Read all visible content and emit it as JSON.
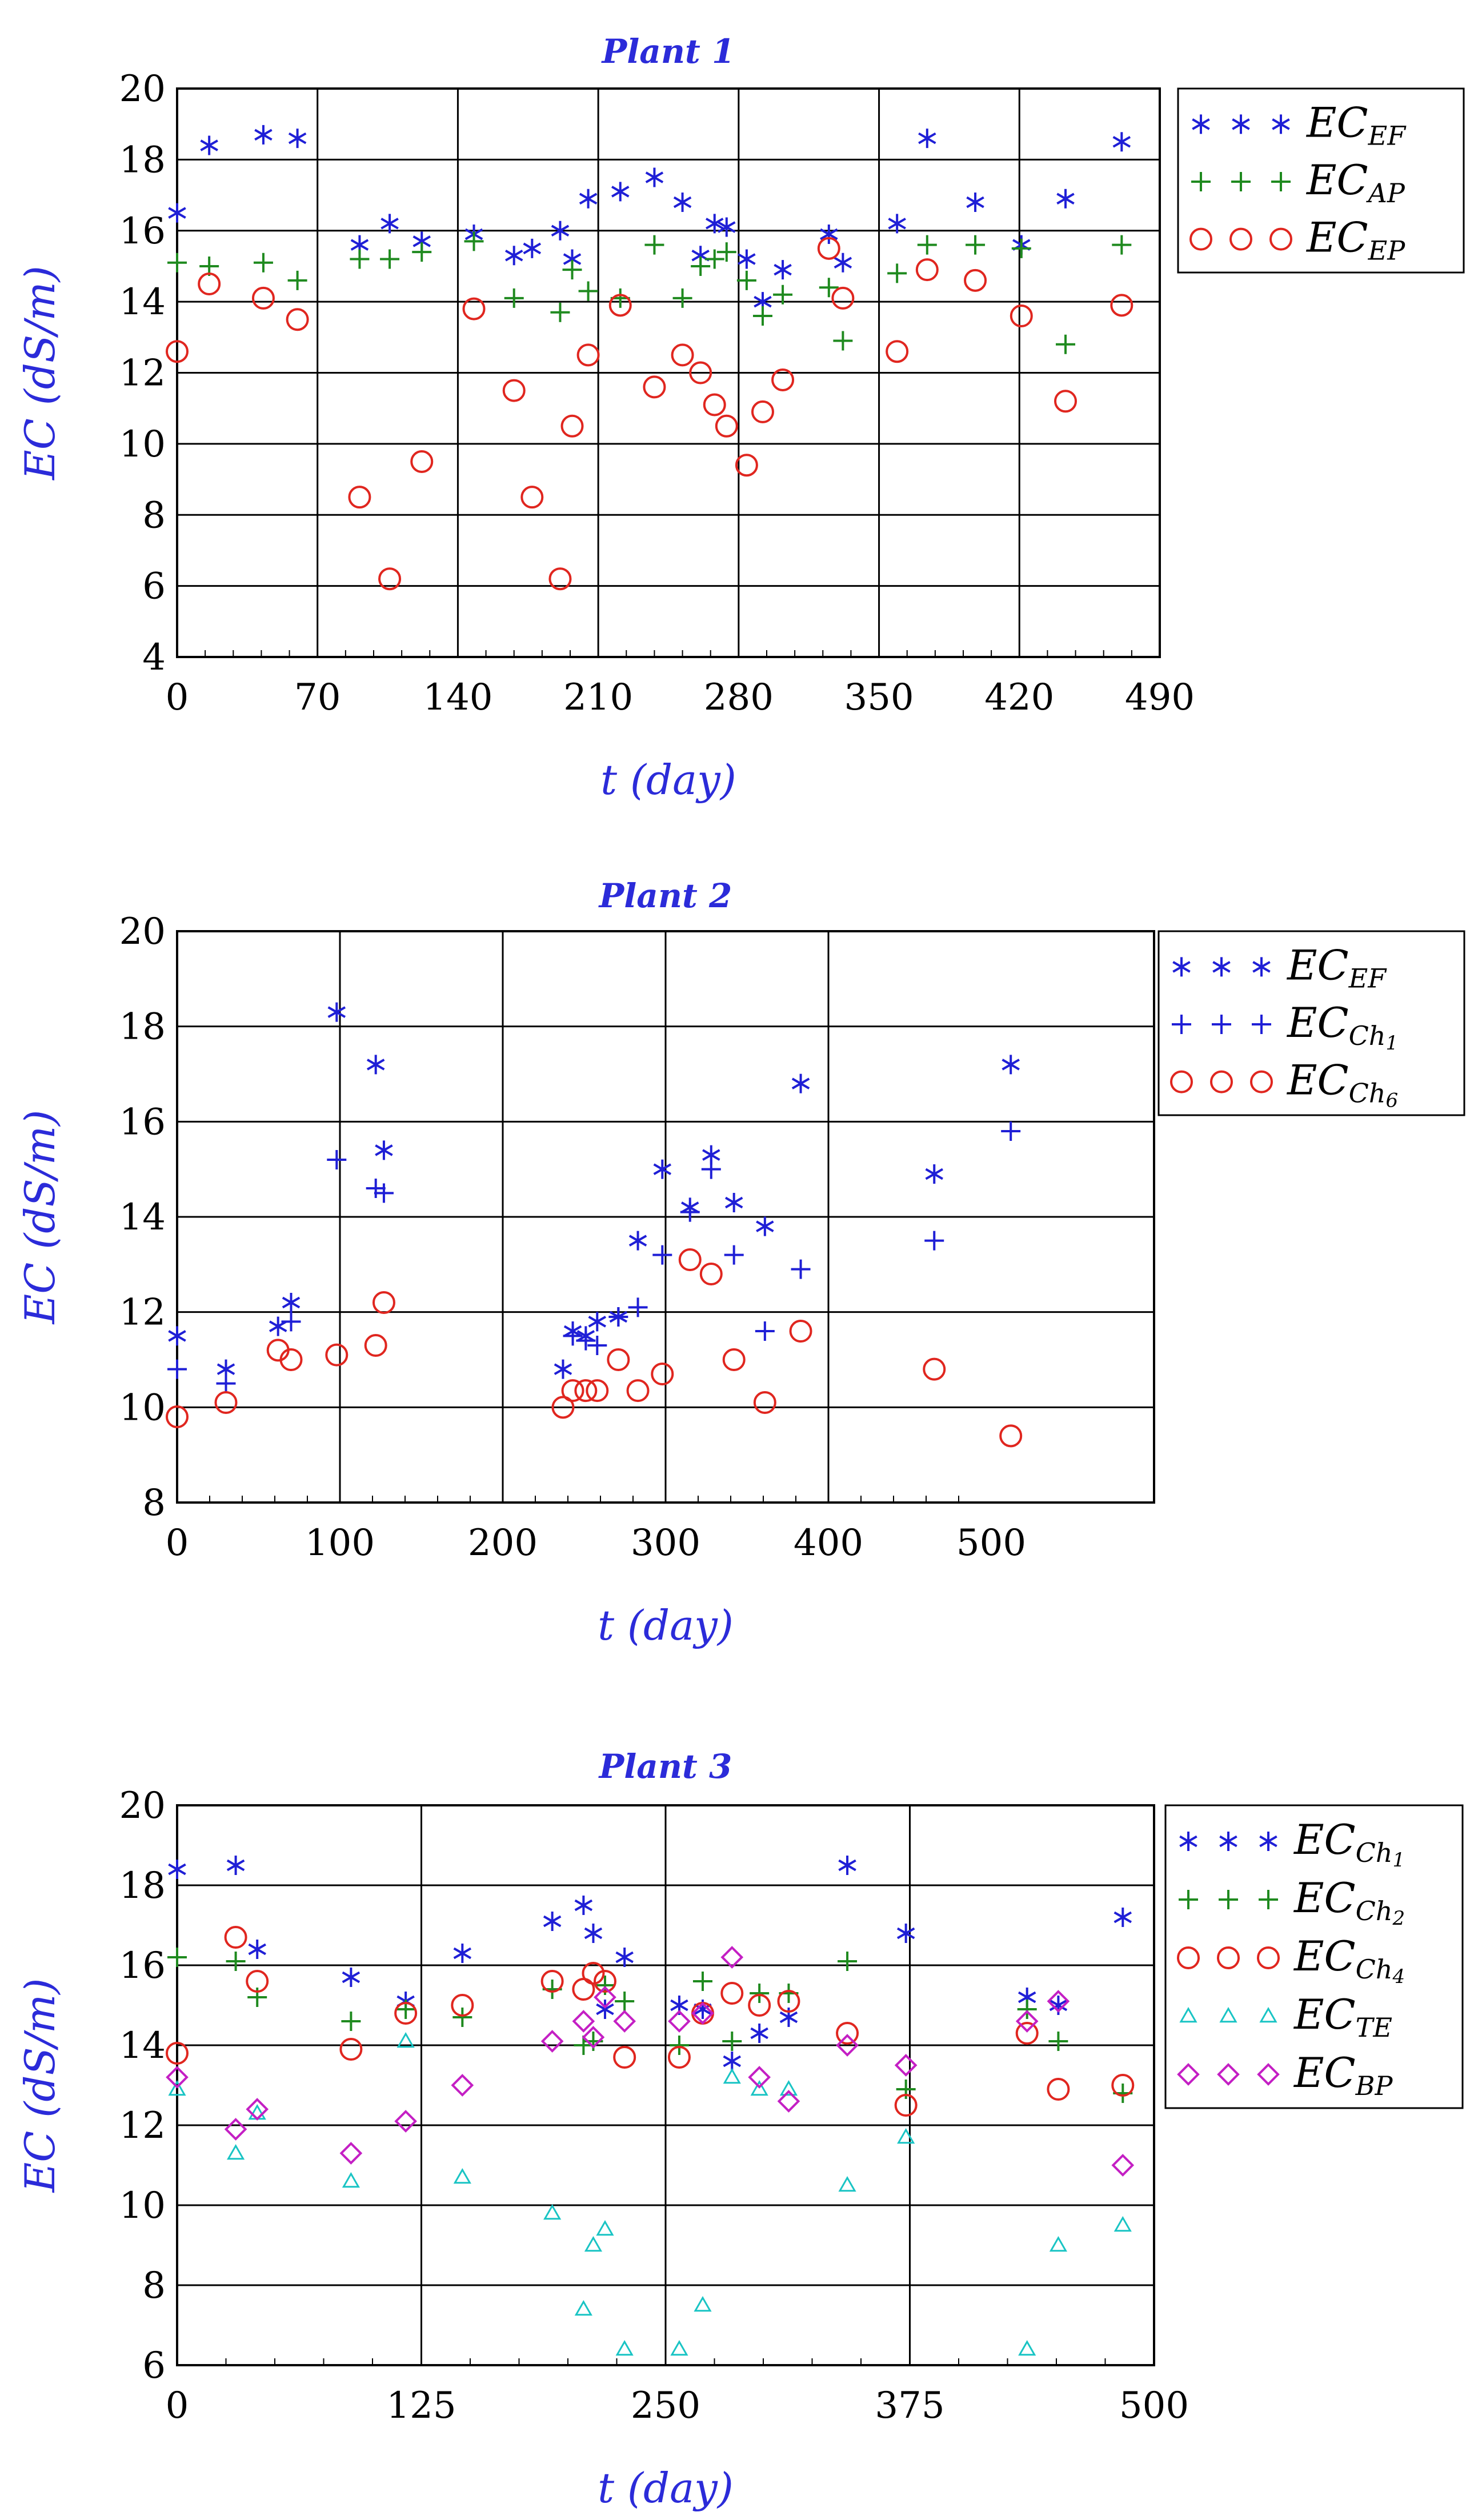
{
  "colors": {
    "EF": "#1f1fd6",
    "AP": "#1f8a1f",
    "EP": "#e0261f",
    "Ch1": "#1f1fd6",
    "Ch6": "#e0261f",
    "Ch2": "#1f8a1f",
    "Ch4": "#e0261f",
    "TE": "#19c4c4",
    "BP": "#c41fc4",
    "label": "#2b2bd9"
  },
  "chart_data": [
    {
      "type": "scatter",
      "title": "Plant 1",
      "xlabel": "t (day)",
      "ylabel": "EC (dS/m)",
      "xlim": [
        0,
        490
      ],
      "ylim": [
        4,
        20
      ],
      "xticks": [
        0,
        70,
        140,
        210,
        280,
        350,
        420,
        490
      ],
      "yticks": [
        4,
        6,
        8,
        10,
        12,
        14,
        16,
        18,
        20
      ],
      "grid": true,
      "legend_position": "top-right outside",
      "series": [
        {
          "name": "EC_EF",
          "base": "EC",
          "sub": "EF",
          "marker": "asterisk",
          "color": "EF",
          "x": [
            0,
            16,
            43,
            60,
            91,
            106,
            122,
            148,
            168,
            177,
            191,
            197,
            205,
            221,
            238,
            252,
            261,
            268,
            274,
            284,
            292,
            302,
            325,
            332,
            359,
            374,
            398,
            421,
            443,
            471
          ],
          "y": [
            16.5,
            18.4,
            18.7,
            18.6,
            15.6,
            16.2,
            15.7,
            15.9,
            15.3,
            15.5,
            16.0,
            15.2,
            16.9,
            17.1,
            17.5,
            16.8,
            15.3,
            16.2,
            16.1,
            15.2,
            14.0,
            14.9,
            15.9,
            15.1,
            16.2,
            18.6,
            16.8,
            15.6,
            16.9,
            18.5
          ]
        },
        {
          "name": "EC_AP",
          "base": "EC",
          "sub": "AP",
          "marker": "plus",
          "color": "AP",
          "x": [
            0,
            16,
            43,
            60,
            91,
            106,
            122,
            148,
            168,
            191,
            197,
            205,
            221,
            238,
            252,
            261,
            268,
            274,
            284,
            292,
            302,
            325,
            332,
            359,
            374,
            398,
            421,
            443,
            471
          ],
          "y": [
            15.1,
            15.0,
            15.1,
            14.6,
            15.2,
            15.2,
            15.4,
            15.7,
            14.1,
            13.7,
            14.9,
            14.3,
            14.1,
            15.6,
            14.1,
            15.0,
            15.2,
            15.4,
            14.6,
            13.6,
            14.2,
            14.4,
            12.9,
            14.8,
            15.6,
            15.6,
            15.5,
            12.8,
            15.6
          ]
        },
        {
          "name": "EC_EP",
          "base": "EC",
          "sub": "EP",
          "marker": "circle",
          "color": "EP",
          "x": [
            0,
            16,
            43,
            60,
            91,
            106,
            122,
            148,
            168,
            177,
            191,
            197,
            205,
            221,
            238,
            252,
            261,
            268,
            274,
            284,
            292,
            302,
            325,
            332,
            359,
            374,
            398,
            421,
            443,
            471
          ],
          "y": [
            12.6,
            14.5,
            14.1,
            13.5,
            8.5,
            6.2,
            9.5,
            13.8,
            11.5,
            8.5,
            6.2,
            10.5,
            12.5,
            13.9,
            11.6,
            12.5,
            12.0,
            11.1,
            10.5,
            9.4,
            10.9,
            11.8,
            15.5,
            14.1,
            12.6,
            14.9,
            14.6,
            13.6,
            11.2,
            13.9
          ]
        }
      ]
    },
    {
      "type": "scatter",
      "title": "Plant 2",
      "xlabel": "t (day)",
      "ylabel": "EC (dS/m)",
      "xlim": [
        0,
        600
      ],
      "ylim": [
        8,
        20
      ],
      "xticks": [
        0,
        100,
        200,
        300,
        400,
        500
      ],
      "yticks": [
        8,
        10,
        12,
        14,
        16,
        18,
        20
      ],
      "grid": true,
      "legend_position": "top-right outside",
      "series": [
        {
          "name": "EC_EF",
          "base": "EC",
          "sub": "EF",
          "marker": "asterisk",
          "color": "EF",
          "x": [
            0,
            30,
            62,
            70,
            98,
            122,
            127,
            237,
            243,
            251,
            258,
            271,
            283,
            298,
            315,
            328,
            342,
            361,
            383,
            465,
            512
          ],
          "y": [
            11.5,
            10.8,
            11.7,
            12.2,
            18.3,
            17.2,
            15.4,
            10.8,
            11.6,
            11.5,
            11.8,
            11.9,
            13.5,
            15.0,
            14.2,
            15.3,
            14.3,
            13.8,
            16.8,
            14.9,
            17.2
          ]
        },
        {
          "name": "EC_Ch1",
          "base": "EC",
          "sub": "Ch",
          "subsub": "1",
          "marker": "plus",
          "color": "Ch1",
          "x": [
            0,
            30,
            70,
            98,
            122,
            127,
            243,
            251,
            258,
            271,
            283,
            298,
            315,
            328,
            342,
            361,
            383,
            465,
            512
          ],
          "y": [
            10.8,
            10.5,
            11.8,
            15.2,
            14.6,
            14.5,
            11.5,
            11.4,
            11.3,
            11.9,
            12.1,
            13.2,
            14.1,
            15.0,
            13.2,
            11.6,
            12.9,
            13.5,
            15.8
          ]
        },
        {
          "name": "EC_Ch6",
          "base": "EC",
          "sub": "Ch",
          "subsub": "6",
          "marker": "circle",
          "color": "Ch6",
          "x": [
            0,
            30,
            62,
            70,
            98,
            122,
            127,
            237,
            243,
            251,
            258,
            271,
            283,
            298,
            315,
            328,
            342,
            361,
            383,
            465,
            512
          ],
          "y": [
            9.8,
            10.1,
            11.2,
            11.0,
            11.1,
            11.3,
            12.2,
            10.0,
            10.35,
            10.35,
            10.35,
            11.0,
            10.35,
            10.7,
            13.1,
            12.8,
            11.0,
            10.1,
            11.6,
            10.8,
            9.4
          ]
        }
      ]
    },
    {
      "type": "scatter",
      "title": "Plant 3",
      "xlabel": "t (day)",
      "ylabel": "EC (dS/m)",
      "xlim": [
        0,
        500
      ],
      "ylim": [
        6,
        20
      ],
      "xticks": [
        0,
        125,
        250,
        375,
        500
      ],
      "yticks": [
        6,
        8,
        10,
        12,
        14,
        16,
        18,
        20
      ],
      "grid": true,
      "legend_position": "top-right outside",
      "series": [
        {
          "name": "EC_Ch1",
          "base": "EC",
          "sub": "Ch",
          "subsub": "1",
          "marker": "asterisk",
          "color": "Ch1",
          "x": [
            0,
            30,
            41,
            89,
            117,
            146,
            192,
            208,
            213,
            219,
            229,
            257,
            269,
            284,
            298,
            313,
            343,
            373,
            435,
            451,
            484
          ],
          "y": [
            18.4,
            18.5,
            16.4,
            15.7,
            15.1,
            16.3,
            17.1,
            17.5,
            16.8,
            14.9,
            16.2,
            15.0,
            14.9,
            13.6,
            14.3,
            14.7,
            18.5,
            16.8,
            15.2,
            15.0,
            17.2
          ]
        },
        {
          "name": "EC_Ch2",
          "base": "EC",
          "sub": "Ch",
          "subsub": "2",
          "marker": "plus",
          "color": "Ch2",
          "x": [
            0,
            30,
            41,
            89,
            117,
            146,
            192,
            208,
            213,
            219,
            229,
            257,
            269,
            284,
            298,
            313,
            343,
            373,
            435,
            451,
            484
          ],
          "y": [
            16.2,
            16.1,
            15.2,
            14.6,
            14.9,
            14.7,
            15.4,
            14.0,
            14.1,
            15.5,
            15.1,
            14.0,
            15.6,
            14.1,
            15.3,
            15.3,
            16.1,
            12.9,
            14.9,
            14.1,
            12.8
          ]
        },
        {
          "name": "EC_Ch4",
          "base": "EC",
          "sub": "Ch",
          "subsub": "4",
          "marker": "circle",
          "color": "Ch4",
          "x": [
            0,
            30,
            41,
            89,
            117,
            146,
            192,
            208,
            213,
            219,
            229,
            257,
            269,
            284,
            298,
            313,
            343,
            373,
            435,
            451,
            484
          ],
          "y": [
            13.8,
            16.7,
            15.6,
            13.9,
            14.8,
            15.0,
            15.6,
            15.4,
            15.8,
            15.6,
            13.7,
            13.7,
            14.8,
            15.3,
            15.0,
            15.1,
            14.3,
            12.5,
            14.3,
            12.9,
            13.0
          ]
        },
        {
          "name": "EC_TE",
          "base": "EC",
          "sub": "TE",
          "marker": "triangle",
          "color": "TE",
          "x": [
            0,
            30,
            41,
            89,
            117,
            146,
            192,
            208,
            213,
            219,
            229,
            257,
            269,
            284,
            298,
            313,
            343,
            373,
            435,
            451,
            484
          ],
          "y": [
            12.9,
            11.3,
            12.3,
            10.6,
            14.1,
            10.7,
            9.8,
            7.4,
            9.0,
            9.4,
            6.4,
            6.4,
            7.5,
            13.2,
            12.9,
            12.9,
            10.5,
            11.7,
            6.4,
            9.0,
            9.5
          ]
        },
        {
          "name": "EC_BP",
          "base": "EC",
          "sub": "BP",
          "marker": "diamond",
          "color": "BP",
          "x": [
            0,
            30,
            41,
            89,
            117,
            146,
            192,
            208,
            213,
            219,
            229,
            257,
            269,
            284,
            298,
            313,
            343,
            373,
            435,
            451,
            484
          ],
          "y": [
            13.2,
            11.9,
            12.4,
            11.3,
            12.1,
            13.0,
            14.1,
            14.6,
            14.2,
            15.2,
            14.6,
            14.6,
            14.8,
            16.2,
            13.2,
            12.6,
            14.0,
            13.5,
            14.6,
            15.1,
            11.0
          ]
        }
      ]
    }
  ]
}
